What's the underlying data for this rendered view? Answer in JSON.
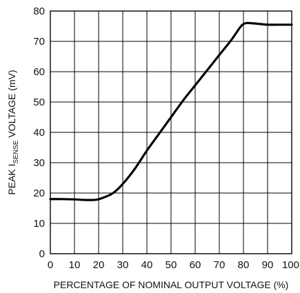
{
  "chart_data": {
    "type": "line",
    "xlabel": "PERCENTAGE OF NOMINAL OUTPUT VOLTAGE (%)",
    "ylabel_prefix": "PEAK I",
    "ylabel_subscript": "SENSE",
    "ylabel_suffix": " VOLTAGE (mV)",
    "xlim": [
      0,
      100
    ],
    "ylim": [
      0,
      80
    ],
    "x_ticks": [
      0,
      10,
      20,
      30,
      40,
      50,
      60,
      70,
      80,
      90,
      100
    ],
    "y_ticks": [
      0,
      10,
      20,
      30,
      40,
      50,
      60,
      70,
      80
    ],
    "grid": true,
    "series": [
      {
        "x": [
          0,
          5,
          10,
          15,
          19,
          22,
          26,
          30,
          35,
          40,
          45,
          50,
          55,
          60,
          65,
          70,
          75,
          79,
          81,
          83,
          86,
          90,
          95,
          100
        ],
        "y": [
          18.0,
          18.0,
          17.9,
          17.7,
          17.8,
          18.5,
          20.0,
          23.0,
          28.0,
          34.0,
          39.5,
          45.0,
          50.5,
          55.5,
          60.5,
          65.5,
          70.5,
          75.0,
          76.0,
          76.0,
          75.8,
          75.5,
          75.5,
          75.5
        ]
      }
    ]
  }
}
